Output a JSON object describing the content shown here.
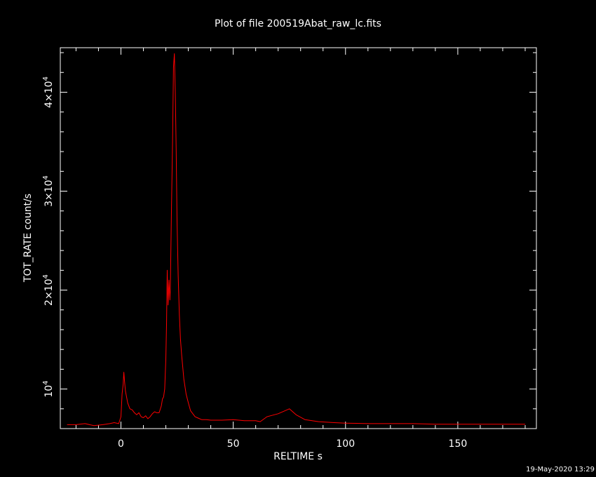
{
  "footer": {
    "timestamp": "19-May-2020 13:29"
  },
  "colors": {
    "background": "#000000",
    "axes": "#ffffff",
    "series": "#ff0000"
  },
  "chart_data": {
    "type": "line",
    "title": "Plot of file 200519Abat_raw_lc.fits",
    "xlabel": "RELTIME  s",
    "ylabel": "TOT_RATE  count/s",
    "xlim": [
      -27,
      185
    ],
    "ylim": [
      6000,
      44500
    ],
    "grid": false,
    "legend": "none",
    "x_ticks": [
      0,
      50,
      100,
      150
    ],
    "x_tick_labels": [
      "0",
      "50",
      "100",
      "150"
    ],
    "y_ticks": [
      10000,
      20000,
      30000,
      40000
    ],
    "y_tick_labels": [
      {
        "mantissa": "",
        "base": "10",
        "exp": "4"
      },
      {
        "mantissa": "2×",
        "base": "10",
        "exp": "4"
      },
      {
        "mantissa": "3×",
        "base": "10",
        "exp": "4"
      },
      {
        "mantissa": "4×",
        "base": "10",
        "exp": "4"
      }
    ],
    "series": [
      {
        "x": [
          -24,
          -20,
          -16,
          -12,
          -8,
          -5,
          -3,
          -1,
          0,
          0.5,
          1,
          1.3,
          1.6,
          2,
          2.5,
          3,
          4,
          5,
          6,
          7,
          8,
          9,
          10,
          11,
          12,
          13,
          14,
          15,
          16,
          17,
          18,
          18.5,
          19,
          19.5,
          20,
          20.3,
          20.6,
          21,
          21.4,
          21.8,
          22,
          22.5,
          23,
          23.4,
          23.8,
          24.2,
          24.6,
          25,
          25.5,
          26,
          26.5,
          27,
          28,
          29,
          30,
          31,
          32,
          33,
          34,
          36,
          38,
          40,
          45,
          50,
          55,
          60,
          62,
          65,
          70,
          75,
          78,
          82,
          88,
          95,
          100,
          110,
          120,
          130,
          140,
          150,
          160,
          170,
          180
        ],
        "y": [
          6400,
          6400,
          6500,
          6300,
          6400,
          6500,
          6600,
          6500,
          7200,
          9500,
          10500,
          11700,
          10800,
          9800,
          9200,
          8600,
          8000,
          7900,
          7600,
          7400,
          7600,
          7200,
          7100,
          7300,
          7000,
          7200,
          7500,
          7700,
          7600,
          7600,
          8300,
          9000,
          9200,
          10000,
          13000,
          16500,
          22000,
          18500,
          21000,
          19000,
          20000,
          28000,
          35000,
          42500,
          43900,
          40000,
          34000,
          27000,
          21500,
          17500,
          15000,
          13500,
          11000,
          9500,
          8600,
          7800,
          7500,
          7200,
          7100,
          6900,
          6900,
          6850,
          6850,
          6900,
          6800,
          6800,
          6700,
          7200,
          7500,
          8000,
          7400,
          6900,
          6700,
          6600,
          6550,
          6500,
          6500,
          6500,
          6450,
          6450,
          6450,
          6450,
          6450
        ]
      }
    ]
  }
}
